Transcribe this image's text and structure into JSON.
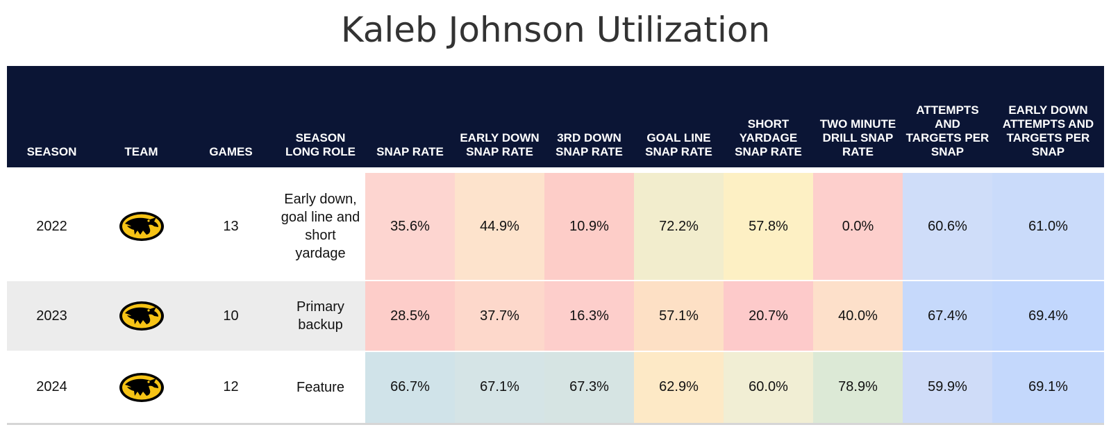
{
  "title": "Kaleb Johnson Utilization",
  "chart_data": {
    "type": "table",
    "title": "Kaleb Johnson Utilization",
    "columns": [
      "SEASON",
      "TEAM",
      "GAMES",
      "SEASON LONG ROLE",
      "SNAP RATE",
      "EARLY DOWN SNAP RATE",
      "3RD DOWN SNAP RATE",
      "GOAL LINE SNAP RATE",
      "SHORT YARDAGE SNAP RATE",
      "TWO MINUTE DRILL SNAP RATE",
      "ATTEMPTS AND TARGETS PER SNAP",
      "EARLY DOWN ATTEMPTS AND TARGETS PER SNAP"
    ],
    "team_logo_icon": "iowa-hawkeyes-logo-icon",
    "rows": [
      {
        "season": "2022",
        "games": "13",
        "role": "Early down, goal line and short yardage",
        "values": [
          "35.6%",
          "44.9%",
          "10.9%",
          "72.2%",
          "57.8%",
          "0.0%",
          "60.6%",
          "61.0%"
        ],
        "colors": [
          "#fdd5d0",
          "#fde3cc",
          "#fdcdc8",
          "#f2edcd",
          "#fdf0c4",
          "#fdcfcc",
          "#cfddf9",
          "#cadbfa"
        ]
      },
      {
        "season": "2023",
        "games": "10",
        "role": "Primary backup",
        "values": [
          "28.5%",
          "37.7%",
          "16.3%",
          "57.1%",
          "20.7%",
          "40.0%",
          "67.4%",
          "69.4%"
        ],
        "colors": [
          "#fdcdc9",
          "#fdd8cb",
          "#fdcecb",
          "#fde0c5",
          "#fdcaca",
          "#fde0ca",
          "#c6d9fb",
          "#c2d7fd"
        ]
      },
      {
        "season": "2024",
        "games": "12",
        "role": "Feature",
        "values": [
          "66.7%",
          "67.1%",
          "67.3%",
          "62.9%",
          "60.0%",
          "78.9%",
          "59.9%",
          "69.1%"
        ],
        "colors": [
          "#d0e3e9",
          "#d5e4e6",
          "#d6e4e3",
          "#fde9c6",
          "#f1eed4",
          "#dce9d6",
          "#cfdcf8",
          "#c4d8fc"
        ]
      }
    ]
  }
}
